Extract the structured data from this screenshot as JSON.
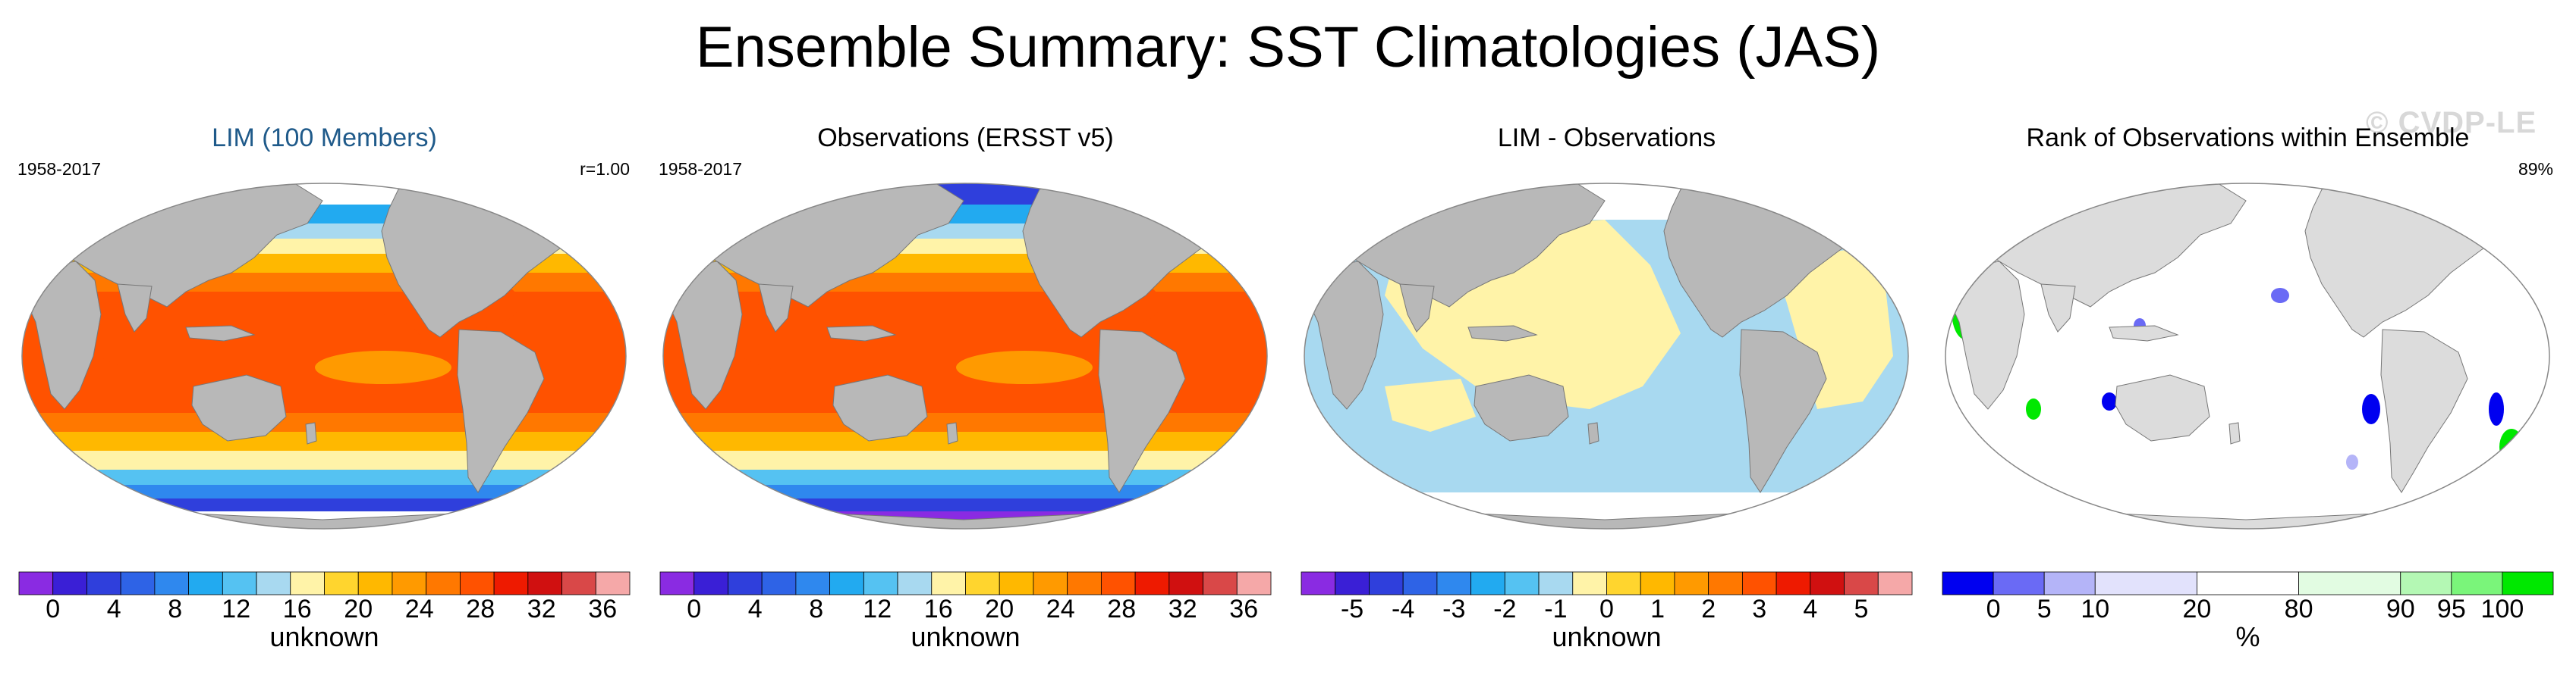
{
  "title": "Ensemble Summary: SST Climatologies (JAS)",
  "watermark": "© CVDP-LE",
  "colors": {
    "land": "#b8b8b8",
    "land_light": "#dcdcdc",
    "ocean_outline": "#888888"
  },
  "panels": [
    {
      "title": "LIM (100 Members)",
      "left_label": "1958-2017",
      "right_label": "r=1.00",
      "unit": "unknown",
      "map_style": "sst",
      "colorbar": {
        "colors": [
          "#8a2be2",
          "#3a1fd6",
          "#2f3fdc",
          "#2e63e6",
          "#2f88ee",
          "#22aaf0",
          "#55c2f2",
          "#a8d9f0",
          "#fff3a8",
          "#ffd52e",
          "#ffb800",
          "#ff9a00",
          "#ff7800",
          "#ff5200",
          "#ee1a00",
          "#d01010",
          "#d94848",
          "#f5a8a8"
        ],
        "labels": [
          "0",
          "4",
          "8",
          "12",
          "16",
          "20",
          "24",
          "28",
          "32",
          "36"
        ]
      }
    },
    {
      "title": "Observations (ERSST v5)",
      "left_label": "1958-2017",
      "right_label": "",
      "unit": "unknown",
      "map_style": "sst_obs",
      "colorbar": {
        "colors": [
          "#8a2be2",
          "#3a1fd6",
          "#2f3fdc",
          "#2e63e6",
          "#2f88ee",
          "#22aaf0",
          "#55c2f2",
          "#a8d9f0",
          "#fff3a8",
          "#ffd52e",
          "#ffb800",
          "#ff9a00",
          "#ff7800",
          "#ff5200",
          "#ee1a00",
          "#d01010",
          "#d94848",
          "#f5a8a8"
        ],
        "labels": [
          "0",
          "4",
          "8",
          "12",
          "16",
          "20",
          "24",
          "28",
          "32",
          "36"
        ]
      }
    },
    {
      "title": "LIM - Observations",
      "left_label": "",
      "right_label": "",
      "unit": "unknown",
      "map_style": "diff",
      "colorbar": {
        "colors": [
          "#8a2be2",
          "#3a1fd6",
          "#2f3fdc",
          "#2e63e6",
          "#2f88ee",
          "#22aaf0",
          "#55c2f2",
          "#a8d9f0",
          "#fff3a8",
          "#ffd52e",
          "#ffb800",
          "#ff9a00",
          "#ff7800",
          "#ff5200",
          "#ee1a00",
          "#d01010",
          "#d94848",
          "#f5a8a8"
        ],
        "labels": [
          "-5",
          "-4",
          "-3",
          "-2",
          "-1",
          "0",
          "1",
          "2",
          "3",
          "4",
          "5"
        ]
      }
    },
    {
      "title": "Rank of Observations within Ensemble",
      "left_label": "",
      "right_label": "89%",
      "unit": "%",
      "map_style": "rank",
      "colorbar": {
        "colors": [
          "#0000f0",
          "#6a6af5",
          "#b4b4f8",
          "#e2e2fc",
          "#ffffff",
          "#e2fce2",
          "#b4f8b4",
          "#7af57a",
          "#00e800"
        ],
        "widths": [
          1,
          1,
          1,
          2,
          2,
          2,
          1,
          1,
          1
        ],
        "labels": [
          "0",
          "5",
          "10",
          "20",
          "80",
          "90",
          "95",
          "100"
        ],
        "label_positions": [
          1,
          2,
          3,
          5,
          7,
          9,
          10,
          11
        ]
      }
    }
  ]
}
